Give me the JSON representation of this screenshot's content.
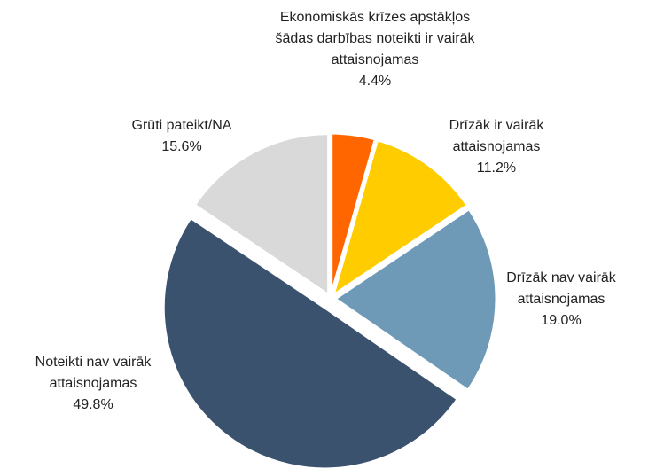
{
  "chart_data": {
    "type": "pie",
    "categories": [
      "Ekonomiskās krīzes apstākļos šādas darbības noteikti ir vairāk attaisnojamas",
      "Drīzāk ir vairāk attaisnojamas",
      "Drīzāk nav vairāk attaisnojamas",
      "Noteikti nav vairāk attaisnojamas",
      "Grūti pateikt/NA"
    ],
    "values": [
      4.4,
      11.2,
      19.0,
      49.8,
      15.6
    ],
    "value_labels": [
      "4.4%",
      "11.2%",
      "19.0%",
      "49.8%",
      "15.6%"
    ],
    "colors": [
      "#ff6600",
      "#ffcc00",
      "#6e9ab8",
      "#3b526e",
      "#d9d9d9"
    ]
  }
}
